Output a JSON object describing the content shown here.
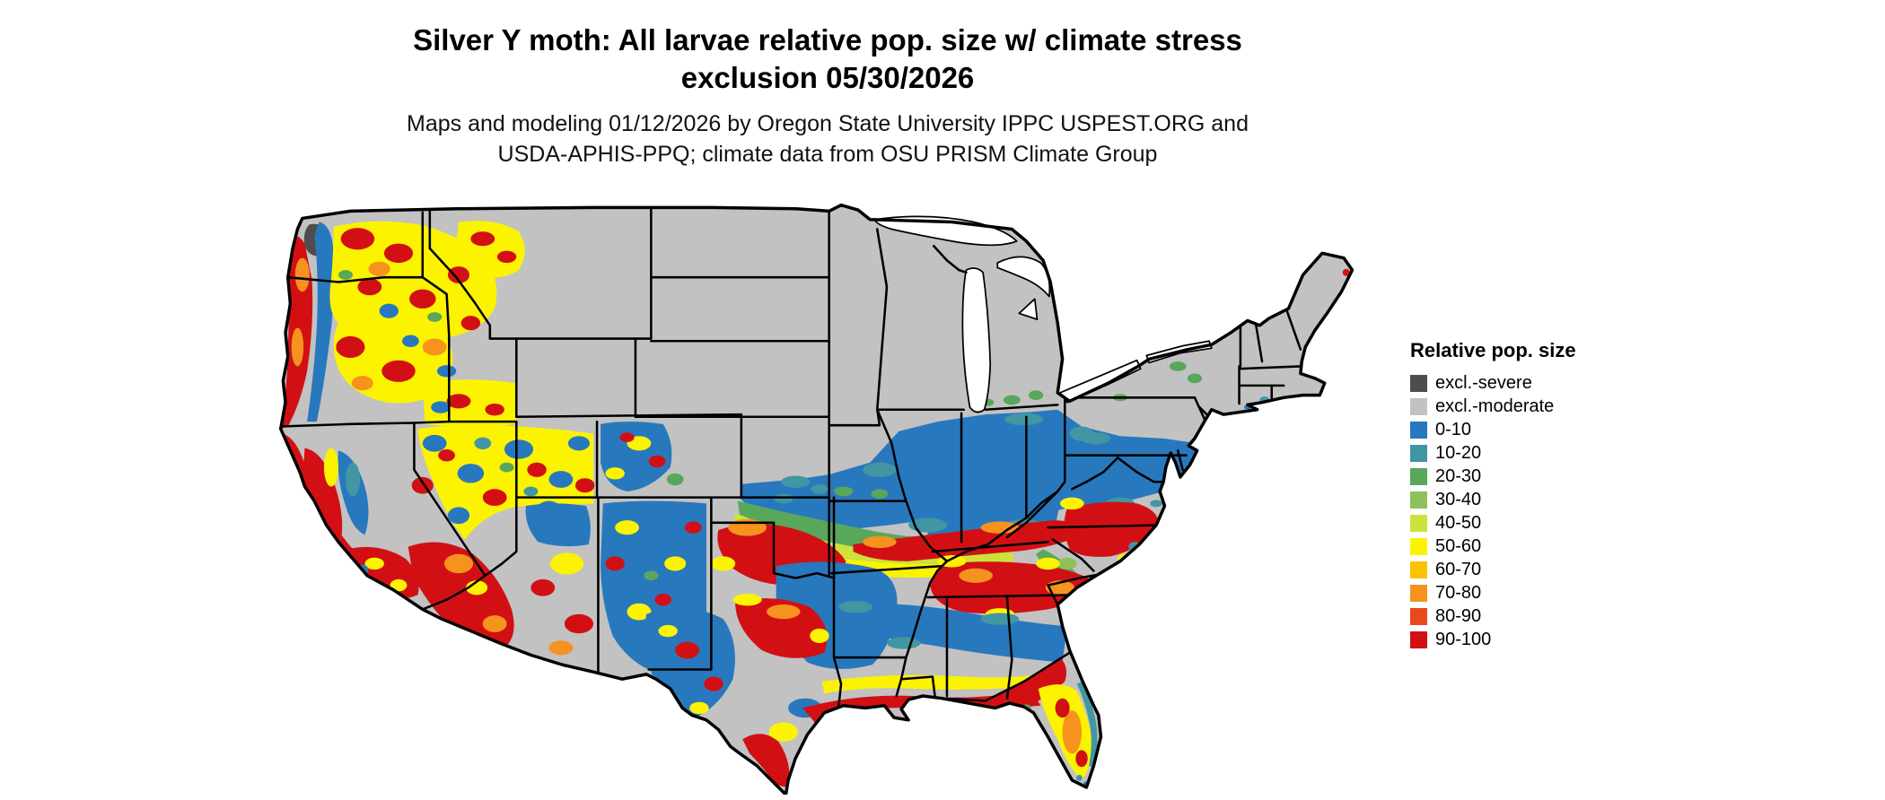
{
  "title": {
    "line1": "Silver Y moth: All larvae relative pop. size w/ climate stress",
    "line2": "exclusion 05/30/2026"
  },
  "subtitle": {
    "line1": "Maps and modeling 01/12/2026 by Oregon State University IPPC USPEST.ORG and",
    "line2": "USDA-APHIS-PPQ; climate data from OSU PRISM Climate Group"
  },
  "legend": {
    "title": "Relative pop. size",
    "items": [
      {
        "label": "excl.-severe",
        "color": "#4D4D4D",
        "key": "sev"
      },
      {
        "label": "excl.-moderate",
        "color": "#C2C2C2",
        "key": "mod"
      },
      {
        "label": "0-10",
        "color": "#2878BE",
        "key": "c0"
      },
      {
        "label": "10-20",
        "color": "#4296A4",
        "key": "c1"
      },
      {
        "label": "20-30",
        "color": "#58A75B",
        "key": "c2"
      },
      {
        "label": "30-40",
        "color": "#90C05A",
        "key": "c3"
      },
      {
        "label": "40-50",
        "color": "#CCE23B",
        "key": "c4"
      },
      {
        "label": "50-60",
        "color": "#FBF300",
        "key": "c5"
      },
      {
        "label": "60-70",
        "color": "#FCC200",
        "key": "c6"
      },
      {
        "label": "70-80",
        "color": "#F6921E",
        "key": "c7"
      },
      {
        "label": "80-90",
        "color": "#E8491D",
        "key": "c8"
      },
      {
        "label": "90-100",
        "color": "#D21014",
        "key": "c9"
      }
    ]
  },
  "map": {
    "region": "Contiguous United States",
    "date_shown": "05/30/2026",
    "background_color": "#FFFFFF",
    "state_border_color": "#000000"
  }
}
